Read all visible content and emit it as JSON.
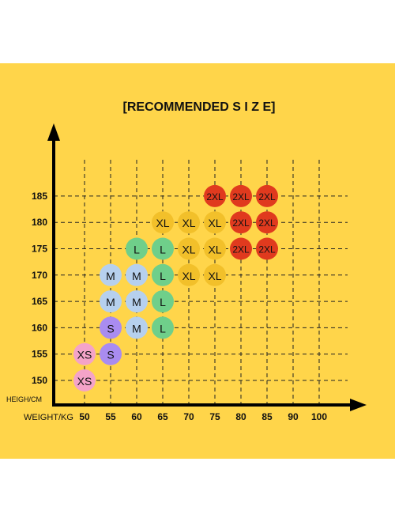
{
  "chart_data": {
    "type": "scatter",
    "title": "[RECOMMENDED    S I Z E]",
    "xlabel": "WEIGHT/KG",
    "ylabel": "HEIGH/CM",
    "x_ticks": [
      50,
      55,
      60,
      65,
      70,
      75,
      80,
      85,
      90,
      100
    ],
    "y_ticks": [
      150,
      155,
      160,
      165,
      170,
      175,
      180,
      185
    ],
    "grid": true,
    "grid_style": "dashed",
    "size_colors": {
      "XS": "#f4a3c8",
      "S": "#a98cf0",
      "M": "#b6d0ee",
      "L": "#6fcf8a",
      "XL": "#f2c02a",
      "2XL": "#e03a1e"
    },
    "points": [
      {
        "x": 50,
        "y": 150,
        "size": "XS"
      },
      {
        "x": 50,
        "y": 155,
        "size": "XS"
      },
      {
        "x": 55,
        "y": 155,
        "size": "S"
      },
      {
        "x": 55,
        "y": 160,
        "size": "S"
      },
      {
        "x": 60,
        "y": 160,
        "size": "M"
      },
      {
        "x": 55,
        "y": 165,
        "size": "M"
      },
      {
        "x": 60,
        "y": 165,
        "size": "M"
      },
      {
        "x": 55,
        "y": 170,
        "size": "M"
      },
      {
        "x": 60,
        "y": 170,
        "size": "M"
      },
      {
        "x": 65,
        "y": 160,
        "size": "L"
      },
      {
        "x": 65,
        "y": 165,
        "size": "L"
      },
      {
        "x": 65,
        "y": 170,
        "size": "L"
      },
      {
        "x": 60,
        "y": 175,
        "size": "L"
      },
      {
        "x": 65,
        "y": 175,
        "size": "L"
      },
      {
        "x": 70,
        "y": 170,
        "size": "XL"
      },
      {
        "x": 75,
        "y": 170,
        "size": "XL"
      },
      {
        "x": 70,
        "y": 175,
        "size": "XL"
      },
      {
        "x": 75,
        "y": 175,
        "size": "XL"
      },
      {
        "x": 65,
        "y": 180,
        "size": "XL"
      },
      {
        "x": 70,
        "y": 180,
        "size": "XL"
      },
      {
        "x": 75,
        "y": 180,
        "size": "XL"
      },
      {
        "x": 80,
        "y": 175,
        "size": "2XL"
      },
      {
        "x": 85,
        "y": 175,
        "size": "2XL"
      },
      {
        "x": 80,
        "y": 180,
        "size": "2XL"
      },
      {
        "x": 85,
        "y": 180,
        "size": "2XL"
      },
      {
        "x": 75,
        "y": 185,
        "size": "2XL"
      },
      {
        "x": 80,
        "y": 185,
        "size": "2XL"
      },
      {
        "x": 85,
        "y": 185,
        "size": "2XL"
      }
    ]
  }
}
